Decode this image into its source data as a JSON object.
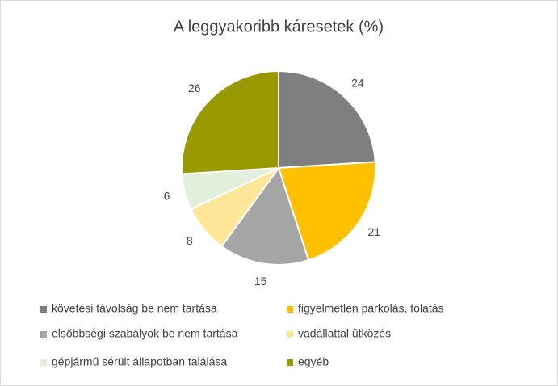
{
  "chart_data": {
    "type": "pie",
    "title": "A leggyakoribb káresetek (%)",
    "categories": [
      "követési távolság be nem tartása",
      "figyelmetlen parkolás, tolatás",
      "elsőbbségi szabályok be nem tartása",
      "vadállattal ütközés",
      "gépjármű sérült állapotban találása",
      "egyéb"
    ],
    "values": [
      24,
      21,
      15,
      8,
      6,
      26
    ],
    "colors": [
      "#7f7f7f",
      "#ffc000",
      "#a5a5a5",
      "#ffe699",
      "#e2efda",
      "#999900"
    ]
  }
}
